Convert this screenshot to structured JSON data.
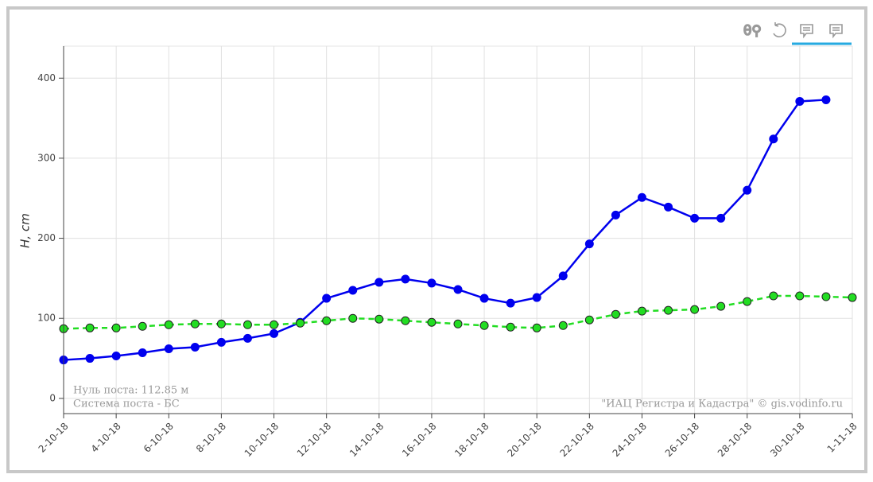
{
  "chart_data": {
    "type": "line",
    "y_label": "H, cm",
    "x": [
      "2-10-18",
      "3-10-18",
      "4-10-18",
      "5-10-18",
      "6-10-18",
      "7-10-18",
      "8-10-18",
      "9-10-18",
      "10-10-18",
      "11-10-18",
      "12-10-18",
      "13-10-18",
      "14-10-18",
      "15-10-18",
      "16-10-18",
      "17-10-18",
      "18-10-18",
      "19-10-18",
      "20-10-18",
      "21-10-18",
      "22-10-18",
      "23-10-18",
      "24-10-18",
      "25-10-18",
      "26-10-18",
      "27-10-18",
      "28-10-18",
      "29-10-18",
      "30-10-18",
      "31-10-18",
      "1-11-18"
    ],
    "series": [
      {
        "color": "#0000ee",
        "values": [
          48,
          50,
          53,
          57,
          62,
          64,
          70,
          75,
          81,
          95,
          125,
          135,
          145,
          149,
          144,
          136,
          125,
          119,
          126,
          153,
          193,
          229,
          251,
          239,
          225,
          225,
          260,
          324,
          371,
          373,
          null
        ]
      },
      {
        "color": "#22dd22",
        "values": [
          87,
          88,
          88,
          90,
          92,
          93,
          93,
          92,
          92,
          94,
          97,
          100,
          99,
          97,
          95,
          93,
          91,
          89,
          88,
          91,
          98,
          105,
          109,
          110,
          111,
          115,
          121,
          128,
          128,
          127,
          126
        ]
      }
    ],
    "xlim": [
      "2-10-18",
      "1-11-18"
    ],
    "xticks": [
      "2-10-18",
      "4-10-18",
      "6-10-18",
      "8-10-18",
      "10-10-18",
      "12-10-18",
      "14-10-18",
      "16-10-18",
      "18-10-18",
      "20-10-18",
      "22-10-18",
      "24-10-18",
      "26-10-18",
      "28-10-18",
      "30-10-18",
      "1-11-18"
    ],
    "ylim": [
      -19,
      440
    ],
    "yticks": [
      0,
      100,
      200,
      300,
      400
    ],
    "grid": true,
    "annotations": [
      "Нуль поста: 112.85 м",
      "Система поста - БС",
      "\"ИАЦ Регистра и Кадастра\" © gis.vodinfo.ru"
    ]
  }
}
